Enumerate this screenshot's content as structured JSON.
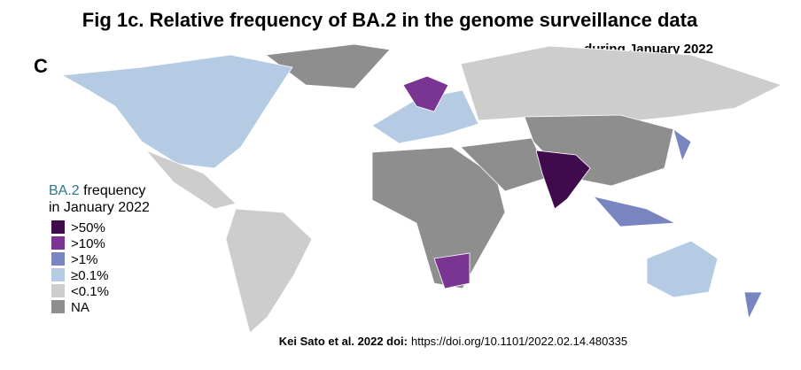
{
  "header": {
    "title": "Fig 1c. Relative frequency of BA.2 in the genome surveillance data",
    "subtitle": "during January 2022",
    "panel": "C"
  },
  "legend": {
    "title_highlight": "BA.2",
    "title_rest": "frequency",
    "title_line2": "in January 2022",
    "items": [
      {
        "label": ">50%",
        "color": "#3f0b4d"
      },
      {
        "label": ">10%",
        "color": "#7a3593"
      },
      {
        "label": ">1%",
        "color": "#7985c0"
      },
      {
        "label": "≥0.1%",
        "color": "#b5cbe4"
      },
      {
        "label": "<0.1%",
        "color": "#cdcdcd"
      },
      {
        "label": "NA",
        "color": "#8e8e8e"
      }
    ]
  },
  "citation": {
    "authors": "Kei Sato et al. 2022 doi:",
    "url": "https://doi.org/10.1101/2022.02.14.480335"
  }
}
